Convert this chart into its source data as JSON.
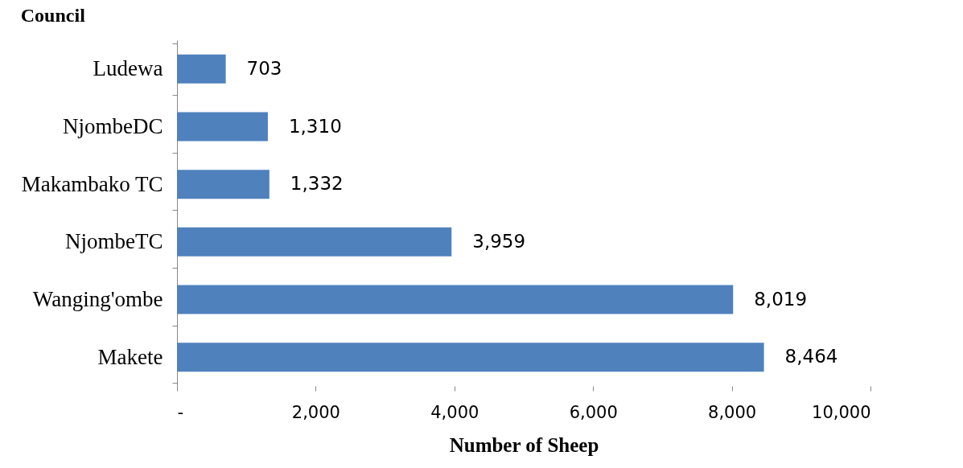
{
  "chart_data": {
    "type": "bar",
    "orientation": "horizontal",
    "ylabel": "Council",
    "xlabel": "Number of Sheep",
    "categories": [
      "Ludewa",
      "NjombeDC",
      "Makambako TC",
      "NjombeTC",
      "Wanging'ombe",
      "Makete"
    ],
    "values": [
      703,
      1310,
      1332,
      3959,
      8019,
      8464
    ],
    "color": "#4f81bd",
    "value_labels": [
      "703",
      "1,310",
      "1,332",
      "3,959",
      "8,019",
      "8,464"
    ],
    "xlim": [
      0,
      10000
    ],
    "xticks": [
      {
        "value": 0,
        "label": "-"
      },
      {
        "value": 2000,
        "label": "2,000"
      },
      {
        "value": 4000,
        "label": "4,000"
      },
      {
        "value": 6000,
        "label": "6,000"
      },
      {
        "value": 8000,
        "label": "8,000"
      },
      {
        "value": 10000,
        "label": "10,000"
      }
    ],
    "grid": false
  }
}
